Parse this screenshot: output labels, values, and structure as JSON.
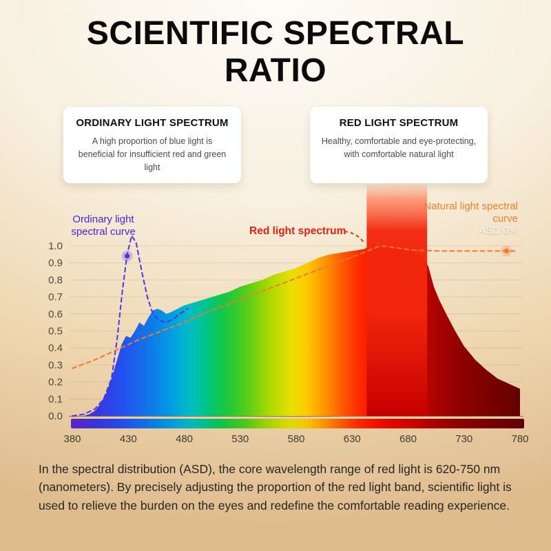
{
  "page": {
    "title": "SCIENTIFIC SPECTRAL RATIO",
    "footer": "In the spectral distribution (ASD), the core wavelength range of red light is 620-750 nm (nanometers). By precisely adjusting the proportion of the red light band, scientific light is used to relieve the burden on the eyes and redefine the comfortable reading experience."
  },
  "cards": [
    {
      "title": "ORDINARY LIGHT SPECTRUM",
      "body": "A high proportion of blue light is beneficial for insufficient red and green light"
    },
    {
      "title": "RED LIGHT SPECTRUM",
      "body": "Healthy, comfortable and eye-protecting, with comfortable natural light"
    }
  ],
  "annotations": {
    "ordinary": {
      "text": "Ordinary light spectral curve",
      "color": "#4326dd"
    },
    "red": {
      "text": "Red light spectrum",
      "color": "#e02412"
    },
    "natural": {
      "text": "Natural light spectral curve",
      "color": "#ef8030"
    },
    "asd": {
      "text": "ASD 0%",
      "color": "#ffffff"
    }
  },
  "chart_data": {
    "type": "area",
    "x_ticks": [
      380,
      430,
      480,
      530,
      580,
      630,
      680,
      730,
      780
    ],
    "y_ticks": [
      0,
      0.1,
      0.2,
      0.3,
      0.4,
      0.5,
      0.6,
      0.7,
      0.8,
      0.9,
      1
    ],
    "xlim": [
      380,
      782
    ],
    "ylim": [
      0,
      1.08
    ],
    "grid": true,
    "legend_position": "none",
    "series": [
      {
        "name": "Light spectrum (rainbow area fill)",
        "type": "area",
        "points": [
          [
            390,
            0
          ],
          [
            395,
            0.01
          ],
          [
            400,
            0.03
          ],
          [
            405,
            0.07
          ],
          [
            410,
            0.13
          ],
          [
            415,
            0.22
          ],
          [
            420,
            0.33
          ],
          [
            424,
            0.42
          ],
          [
            428,
            0.47
          ],
          [
            432,
            0.46
          ],
          [
            436,
            0.5
          ],
          [
            440,
            0.55
          ],
          [
            444,
            0.53
          ],
          [
            448,
            0.58
          ],
          [
            452,
            0.62
          ],
          [
            456,
            0.63
          ],
          [
            460,
            0.62
          ],
          [
            464,
            0.6
          ],
          [
            468,
            0.61
          ],
          [
            474,
            0.63
          ],
          [
            480,
            0.65
          ],
          [
            490,
            0.67
          ],
          [
            500,
            0.69
          ],
          [
            510,
            0.71
          ],
          [
            520,
            0.73
          ],
          [
            530,
            0.76
          ],
          [
            540,
            0.78
          ],
          [
            550,
            0.8
          ],
          [
            560,
            0.83
          ],
          [
            570,
            0.85
          ],
          [
            580,
            0.87
          ],
          [
            590,
            0.9
          ],
          [
            600,
            0.93
          ],
          [
            610,
            0.95
          ],
          [
            620,
            0.96
          ],
          [
            630,
            0.97
          ],
          [
            640,
            0.98
          ],
          [
            648,
            1
          ],
          [
            656,
            1
          ],
          [
            665,
            0.99
          ],
          [
            675,
            0.98
          ],
          [
            685,
            0.96
          ],
          [
            693,
            0.94
          ],
          [
            698,
            0.88
          ],
          [
            703,
            0.76
          ],
          [
            708,
            0.68
          ],
          [
            714,
            0.6
          ],
          [
            722,
            0.5
          ],
          [
            730,
            0.41
          ],
          [
            740,
            0.33
          ],
          [
            750,
            0.27
          ],
          [
            760,
            0.22
          ],
          [
            770,
            0.19
          ],
          [
            780,
            0.16
          ]
        ]
      },
      {
        "name": "Ordinary light spectral curve",
        "type": "line-dashed",
        "color": "#4b35e6",
        "points": [
          [
            380,
            0
          ],
          [
            390,
            0.01
          ],
          [
            400,
            0.04
          ],
          [
            408,
            0.1
          ],
          [
            415,
            0.22
          ],
          [
            420,
            0.45
          ],
          [
            425,
            0.75
          ],
          [
            429,
            0.95
          ],
          [
            433,
            1.06
          ],
          [
            437,
            1.02
          ],
          [
            442,
            0.85
          ],
          [
            447,
            0.7
          ],
          [
            452,
            0.6
          ],
          [
            458,
            0.56
          ],
          [
            464,
            0.55
          ],
          [
            470,
            0.57
          ],
          [
            476,
            0.6
          ],
          [
            483,
            0.63
          ]
        ],
        "marker": [
          429,
          0.94
        ]
      },
      {
        "name": "Natural light spectral curve (ASD 0%)",
        "type": "line-dashed",
        "color": "#f07830",
        "points": [
          [
            380,
            0.28
          ],
          [
            400,
            0.33
          ],
          [
            420,
            0.39
          ],
          [
            440,
            0.45
          ],
          [
            460,
            0.5
          ],
          [
            480,
            0.55
          ],
          [
            500,
            0.61
          ],
          [
            520,
            0.66
          ],
          [
            540,
            0.71
          ],
          [
            560,
            0.76
          ],
          [
            580,
            0.81
          ],
          [
            600,
            0.86
          ],
          [
            620,
            0.91
          ],
          [
            640,
            0.96
          ],
          [
            655,
            1
          ],
          [
            668,
            0.99
          ],
          [
            685,
            0.975
          ],
          [
            710,
            0.97
          ],
          [
            740,
            0.97
          ],
          [
            778,
            0.97
          ]
        ],
        "marker": [
          768,
          0.97
        ]
      }
    ],
    "red_band": {
      "label": "Red light spectrum",
      "range": [
        643,
        697
      ],
      "colors": [
        "#ff7a55",
        "#f2260c",
        "#c60000"
      ]
    },
    "spectrum_gradient": [
      [
        380,
        "#5b28c9"
      ],
      [
        400,
        "#3c34dc"
      ],
      [
        425,
        "#2450f0"
      ],
      [
        450,
        "#0f7ae8"
      ],
      [
        470,
        "#00a0e0"
      ],
      [
        485,
        "#00bcc4"
      ],
      [
        500,
        "#00c488"
      ],
      [
        515,
        "#14c844"
      ],
      [
        535,
        "#52cc1a"
      ],
      [
        555,
        "#a8d800"
      ],
      [
        575,
        "#e6e000"
      ],
      [
        590,
        "#ffc800"
      ],
      [
        605,
        "#ff9600"
      ],
      [
        620,
        "#ff5e00"
      ],
      [
        635,
        "#ff2e00"
      ],
      [
        650,
        "#f81200"
      ],
      [
        665,
        "#e60700"
      ],
      [
        685,
        "#cc0400"
      ],
      [
        705,
        "#aa0300"
      ],
      [
        730,
        "#8c0200"
      ],
      [
        755,
        "#770100"
      ],
      [
        782,
        "#630000"
      ]
    ]
  }
}
